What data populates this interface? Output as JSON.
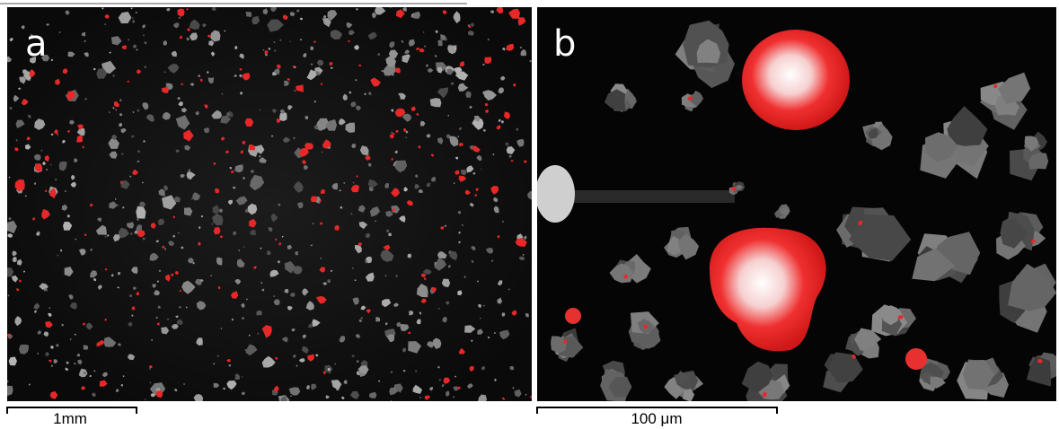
{
  "panels": [
    {
      "label": "a",
      "scale_bar": "1mm"
    },
    {
      "label": "b",
      "scale_bar": "100 μm"
    }
  ]
}
